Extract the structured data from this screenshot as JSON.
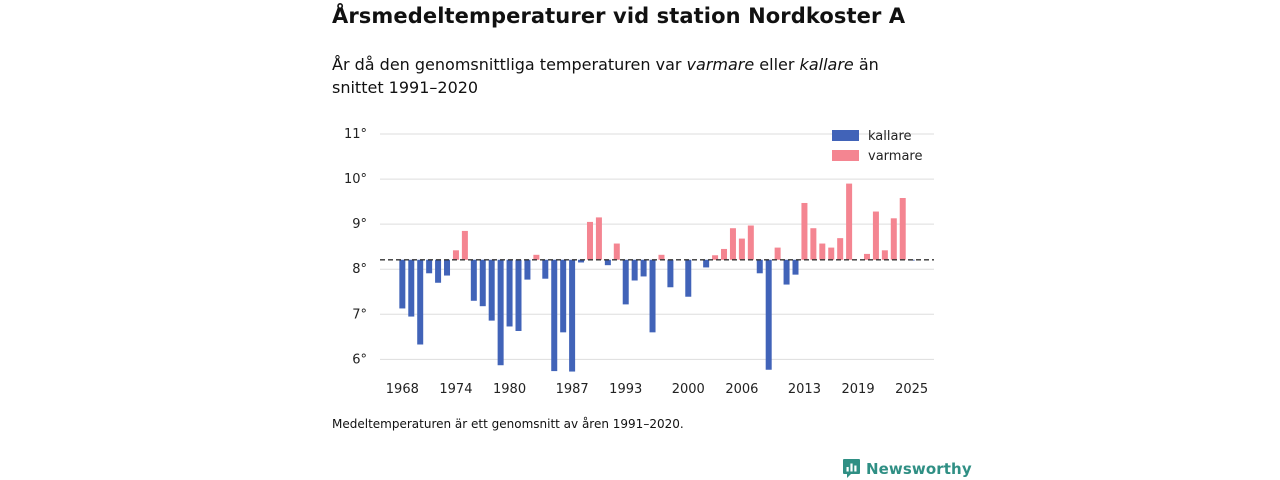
{
  "header": {
    "title": "Årsmedeltemperaturer vid station Nordkoster A",
    "subtitle_part1": "År då den genomsnittliga temperaturen var ",
    "subtitle_warm": "varmare",
    "subtitle_part2": " eller ",
    "subtitle_cold": "kallare",
    "subtitle_part3": " än snittet 1991–2020"
  },
  "footer": {
    "note": "Medeltemperaturen är ett genomsnitt av åren 1991–2020.",
    "brand": "Newsworthy"
  },
  "colors": {
    "kallare": "#4163b8",
    "varmare": "#f48591",
    "grid": "#dddddd",
    "baseline": "#333333",
    "brand": "#2f8f84"
  },
  "chart_data": {
    "type": "bar",
    "title": "Årsmedeltemperaturer vid station Nordkoster A",
    "xlabel": "",
    "ylabel": "",
    "baseline": 8.21,
    "ylim": [
      5.72,
      11.2
    ],
    "yticks": [
      6,
      7,
      8,
      9,
      10,
      11
    ],
    "ytick_labels": [
      "6°",
      "7°",
      "8°",
      "9°",
      "10°",
      "11°"
    ],
    "xlim": [
      1965.5,
      2027.5
    ],
    "xticks": [
      1968,
      1974,
      1980,
      1987,
      1993,
      2000,
      2006,
      2013,
      2019,
      2025
    ],
    "xtick_labels": [
      "1968",
      "1974",
      "1980",
      "1987",
      "1993",
      "2000",
      "2006",
      "2013",
      "2019",
      "2025"
    ],
    "legend": [
      "kallare",
      "varmare"
    ],
    "legend_position": "top-right",
    "x": [
      1968,
      1969,
      1970,
      1971,
      1972,
      1973,
      1974,
      1975,
      1976,
      1977,
      1978,
      1979,
      1980,
      1981,
      1982,
      1983,
      1984,
      1985,
      1986,
      1987,
      1988,
      1989,
      1990,
      1991,
      1992,
      1993,
      1994,
      1995,
      1996,
      1997,
      1998,
      2000,
      2002,
      2003,
      2004,
      2005,
      2006,
      2007,
      2008,
      2009,
      2010,
      2011,
      2012,
      2013,
      2014,
      2015,
      2016,
      2017,
      2018,
      2020,
      2021,
      2022,
      2023,
      2024,
      2025
    ],
    "values": [
      7.13,
      6.95,
      6.33,
      7.91,
      7.7,
      7.86,
      8.42,
      8.85,
      7.3,
      7.18,
      6.86,
      5.87,
      6.73,
      6.63,
      7.77,
      8.32,
      7.79,
      5.74,
      6.6,
      5.73,
      8.15,
      9.05,
      9.15,
      8.09,
      8.57,
      7.22,
      7.75,
      7.84,
      6.6,
      8.32,
      7.6,
      7.39,
      8.04,
      8.31,
      8.45,
      8.91,
      8.68,
      8.97,
      7.91,
      5.77,
      8.48,
      7.66,
      7.88,
      9.47,
      8.91,
      8.57,
      8.48,
      8.69,
      9.9,
      8.34,
      9.28,
      8.42,
      9.13,
      9.58,
      8.2
    ]
  }
}
